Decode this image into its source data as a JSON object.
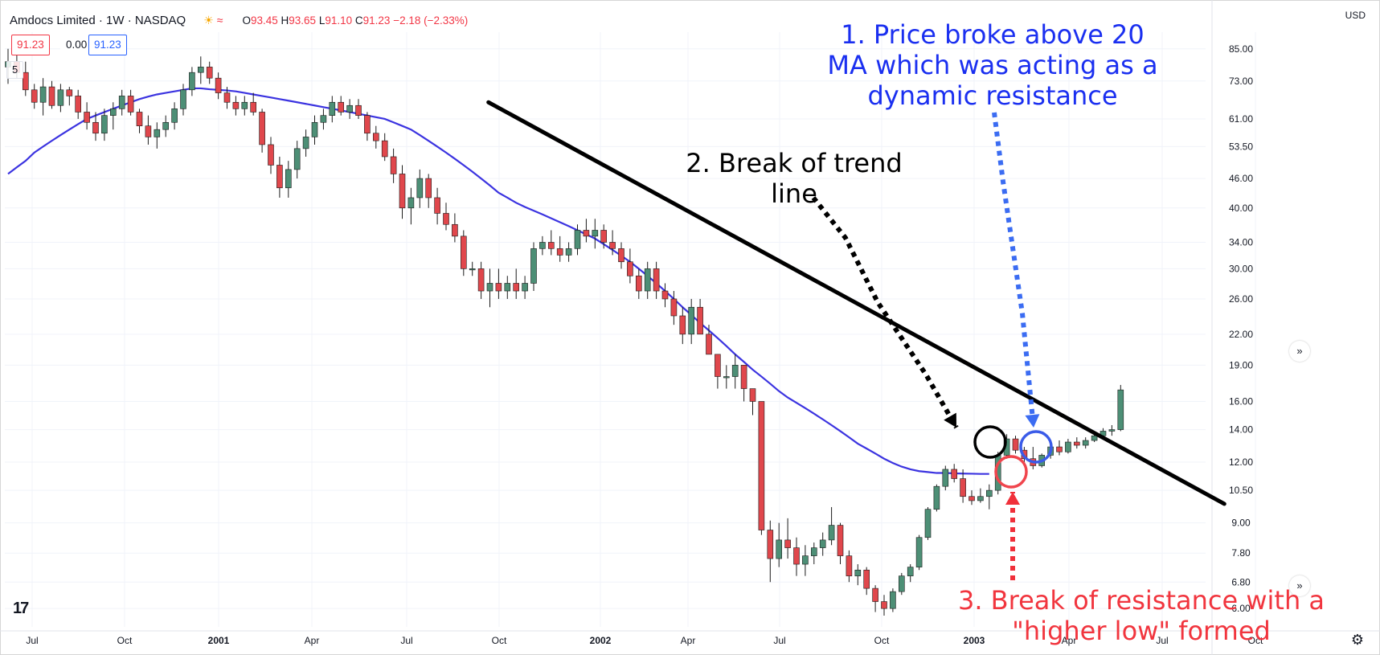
{
  "header": {
    "title": "Amdocs Limited · 1W · NASDAQ",
    "ohlc": {
      "o": "93.45",
      "h": "93.65",
      "l": "91.10",
      "c": "91.23",
      "change": "−2.18 (−2.33%)"
    }
  },
  "price_boxes": {
    "last": "91.23",
    "zero": "0.00",
    "ma": "91.23"
  },
  "legend_badge": "5",
  "currency": "USD",
  "annotations": {
    "one": [
      "1. Price broke above 20",
      "MA which was acting as a",
      "dynamic resistance"
    ],
    "two": [
      "2. Break of trend",
      "line"
    ],
    "three": [
      "3. Break of resistance with a",
      "\"higher low\" formed"
    ]
  },
  "colors": {
    "up": "#26a69a",
    "up_body": "#4d8f76",
    "down": "#e0474c",
    "ma": "#3b33e0",
    "trend": "#000000",
    "blue_annot": "#1a2ff0",
    "red_annot": "#f1353e"
  },
  "icons": {
    "gear": "gear-icon",
    "chevrons": "double-chevron-right-icon",
    "logo": "tradingview-logo-icon"
  },
  "chart_data": {
    "type": "candlestick",
    "title": "Amdocs Limited · 1W · NASDAQ",
    "y_scale": "log",
    "ylim": [
      5.5,
      92
    ],
    "y_ticks": [
      "85.00",
      "73.00",
      "61.00",
      "53.50",
      "46.00",
      "40.00",
      "34.00",
      "30.00",
      "26.00",
      "22.00",
      "19.00",
      "16.00",
      "14.00",
      "12.00",
      "10.50",
      "9.00",
      "7.80",
      "6.80",
      "6.00"
    ],
    "x_ticks": [
      "Jul",
      "Oct",
      "2001",
      "Apr",
      "Jul",
      "Oct",
      "2002",
      "Apr",
      "Jul",
      "Oct",
      "2003",
      "Apr",
      "Jul",
      "Oct"
    ],
    "x_bold": [
      "2001",
      "2002",
      "2003"
    ],
    "candles": [
      {
        "o": 78,
        "h": 85,
        "l": 72,
        "c": 80
      },
      {
        "o": 80,
        "h": 84,
        "l": 74,
        "c": 76
      },
      {
        "o": 76,
        "h": 80,
        "l": 68,
        "c": 70
      },
      {
        "o": 70,
        "h": 72,
        "l": 64,
        "c": 66
      },
      {
        "o": 66,
        "h": 74,
        "l": 62,
        "c": 71
      },
      {
        "o": 71,
        "h": 73,
        "l": 64,
        "c": 65
      },
      {
        "o": 65,
        "h": 72,
        "l": 63,
        "c": 70
      },
      {
        "o": 70,
        "h": 71,
        "l": 65,
        "c": 68
      },
      {
        "o": 68,
        "h": 70,
        "l": 61,
        "c": 63
      },
      {
        "o": 63,
        "h": 66,
        "l": 58,
        "c": 60
      },
      {
        "o": 60,
        "h": 63,
        "l": 55,
        "c": 57
      },
      {
        "o": 57,
        "h": 64,
        "l": 55,
        "c": 62
      },
      {
        "o": 62,
        "h": 66,
        "l": 58,
        "c": 64
      },
      {
        "o": 64,
        "h": 70,
        "l": 62,
        "c": 68
      },
      {
        "o": 68,
        "h": 70,
        "l": 62,
        "c": 63
      },
      {
        "o": 63,
        "h": 64,
        "l": 57,
        "c": 59
      },
      {
        "o": 59,
        "h": 62,
        "l": 54,
        "c": 56
      },
      {
        "o": 56,
        "h": 60,
        "l": 53,
        "c": 58
      },
      {
        "o": 58,
        "h": 62,
        "l": 56,
        "c": 60
      },
      {
        "o": 60,
        "h": 66,
        "l": 58,
        "c": 64
      },
      {
        "o": 64,
        "h": 72,
        "l": 62,
        "c": 70
      },
      {
        "o": 70,
        "h": 78,
        "l": 68,
        "c": 76
      },
      {
        "o": 76,
        "h": 82,
        "l": 72,
        "c": 78
      },
      {
        "o": 78,
        "h": 80,
        "l": 72,
        "c": 74
      },
      {
        "o": 74,
        "h": 76,
        "l": 67,
        "c": 69
      },
      {
        "o": 69,
        "h": 71,
        "l": 64,
        "c": 66
      },
      {
        "o": 66,
        "h": 68,
        "l": 62,
        "c": 64
      },
      {
        "o": 64,
        "h": 68,
        "l": 62,
        "c": 66
      },
      {
        "o": 66,
        "h": 69,
        "l": 62,
        "c": 63
      },
      {
        "o": 63,
        "h": 64,
        "l": 52,
        "c": 54
      },
      {
        "o": 54,
        "h": 56,
        "l": 47,
        "c": 49
      },
      {
        "o": 49,
        "h": 51,
        "l": 42,
        "c": 44
      },
      {
        "o": 44,
        "h": 50,
        "l": 42,
        "c": 48
      },
      {
        "o": 48,
        "h": 55,
        "l": 46,
        "c": 53
      },
      {
        "o": 53,
        "h": 58,
        "l": 51,
        "c": 56
      },
      {
        "o": 56,
        "h": 62,
        "l": 54,
        "c": 60
      },
      {
        "o": 60,
        "h": 64,
        "l": 58,
        "c": 62
      },
      {
        "o": 62,
        "h": 68,
        "l": 60,
        "c": 66
      },
      {
        "o": 66,
        "h": 68,
        "l": 62,
        "c": 63
      },
      {
        "o": 63,
        "h": 67,
        "l": 61,
        "c": 65
      },
      {
        "o": 65,
        "h": 67,
        "l": 61,
        "c": 62
      },
      {
        "o": 62,
        "h": 63,
        "l": 55,
        "c": 57
      },
      {
        "o": 57,
        "h": 59,
        "l": 53,
        "c": 55
      },
      {
        "o": 55,
        "h": 57,
        "l": 50,
        "c": 51
      },
      {
        "o": 51,
        "h": 53,
        "l": 45,
        "c": 47
      },
      {
        "o": 47,
        "h": 49,
        "l": 38,
        "c": 40
      },
      {
        "o": 40,
        "h": 44,
        "l": 37,
        "c": 42
      },
      {
        "o": 42,
        "h": 48,
        "l": 40,
        "c": 46
      },
      {
        "o": 46,
        "h": 47,
        "l": 40,
        "c": 42
      },
      {
        "o": 42,
        "h": 44,
        "l": 37,
        "c": 39
      },
      {
        "o": 39,
        "h": 41,
        "l": 36,
        "c": 37
      },
      {
        "o": 37,
        "h": 39,
        "l": 34,
        "c": 35
      },
      {
        "o": 35,
        "h": 36,
        "l": 29,
        "c": 30
      },
      {
        "o": 30,
        "h": 31,
        "l": 29,
        "c": 30
      },
      {
        "o": 30,
        "h": 31,
        "l": 26,
        "c": 27
      },
      {
        "o": 27,
        "h": 30,
        "l": 25,
        "c": 28
      },
      {
        "o": 28,
        "h": 30,
        "l": 26,
        "c": 27
      },
      {
        "o": 27,
        "h": 29,
        "l": 26,
        "c": 28
      },
      {
        "o": 28,
        "h": 30,
        "l": 26,
        "c": 27
      },
      {
        "o": 27,
        "h": 29,
        "l": 26,
        "c": 28
      },
      {
        "o": 28,
        "h": 34,
        "l": 27,
        "c": 33
      },
      {
        "o": 33,
        "h": 35,
        "l": 32,
        "c": 34
      },
      {
        "o": 34,
        "h": 36,
        "l": 32,
        "c": 33
      },
      {
        "o": 33,
        "h": 35,
        "l": 31,
        "c": 32
      },
      {
        "o": 32,
        "h": 34,
        "l": 31,
        "c": 33
      },
      {
        "o": 33,
        "h": 37,
        "l": 32,
        "c": 36
      },
      {
        "o": 36,
        "h": 38,
        "l": 34,
        "c": 35
      },
      {
        "o": 35,
        "h": 38,
        "l": 33,
        "c": 36
      },
      {
        "o": 36,
        "h": 37,
        "l": 33,
        "c": 34
      },
      {
        "o": 34,
        "h": 36,
        "l": 32,
        "c": 33
      },
      {
        "o": 33,
        "h": 34,
        "l": 30,
        "c": 31
      },
      {
        "o": 31,
        "h": 33,
        "l": 28,
        "c": 29
      },
      {
        "o": 29,
        "h": 30,
        "l": 26,
        "c": 27
      },
      {
        "o": 27,
        "h": 31,
        "l": 26,
        "c": 30
      },
      {
        "o": 30,
        "h": 31,
        "l": 26,
        "c": 27
      },
      {
        "o": 27,
        "h": 28,
        "l": 25,
        "c": 26
      },
      {
        "o": 26,
        "h": 27,
        "l": 23,
        "c": 24
      },
      {
        "o": 24,
        "h": 25,
        "l": 21,
        "c": 22
      },
      {
        "o": 22,
        "h": 26,
        "l": 21,
        "c": 25
      },
      {
        "o": 25,
        "h": 26,
        "l": 22,
        "c": 22
      },
      {
        "o": 22,
        "h": 23,
        "l": 20,
        "c": 20
      },
      {
        "o": 20,
        "h": 20,
        "l": 17,
        "c": 18
      },
      {
        "o": 18,
        "h": 19,
        "l": 17,
        "c": 18
      },
      {
        "o": 18,
        "h": 20,
        "l": 17,
        "c": 19
      },
      {
        "o": 19,
        "h": 19,
        "l": 16,
        "c": 17
      },
      {
        "o": 17,
        "h": 17,
        "l": 15,
        "c": 16
      },
      {
        "o": 16,
        "h": 16,
        "l": 8.5,
        "c": 8.7
      },
      {
        "o": 8.7,
        "h": 9.1,
        "l": 6.8,
        "c": 7.6
      },
      {
        "o": 7.6,
        "h": 9.0,
        "l": 7.3,
        "c": 8.3
      },
      {
        "o": 8.3,
        "h": 9.2,
        "l": 7.6,
        "c": 8.0
      },
      {
        "o": 8.0,
        "h": 8.4,
        "l": 7.0,
        "c": 7.4
      },
      {
        "o": 7.4,
        "h": 8.1,
        "l": 7.0,
        "c": 7.7
      },
      {
        "o": 7.7,
        "h": 8.2,
        "l": 7.4,
        "c": 8.0
      },
      {
        "o": 8.0,
        "h": 8.6,
        "l": 7.7,
        "c": 8.3
      },
      {
        "o": 8.3,
        "h": 9.7,
        "l": 8.1,
        "c": 8.9
      },
      {
        "o": 8.9,
        "h": 9.0,
        "l": 7.4,
        "c": 7.7
      },
      {
        "o": 7.7,
        "h": 7.9,
        "l": 6.8,
        "c": 7.0
      },
      {
        "o": 7.0,
        "h": 7.4,
        "l": 6.7,
        "c": 7.2
      },
      {
        "o": 7.2,
        "h": 7.3,
        "l": 6.4,
        "c": 6.6
      },
      {
        "o": 6.6,
        "h": 6.7,
        "l": 5.9,
        "c": 6.2
      },
      {
        "o": 6.2,
        "h": 6.4,
        "l": 5.8,
        "c": 6.0
      },
      {
        "o": 6.0,
        "h": 6.6,
        "l": 5.9,
        "c": 6.5
      },
      {
        "o": 6.5,
        "h": 7.1,
        "l": 6.4,
        "c": 7.0
      },
      {
        "o": 7.0,
        "h": 7.4,
        "l": 6.8,
        "c": 7.3
      },
      {
        "o": 7.3,
        "h": 8.5,
        "l": 7.2,
        "c": 8.4
      },
      {
        "o": 8.4,
        "h": 9.7,
        "l": 8.3,
        "c": 9.6
      },
      {
        "o": 9.6,
        "h": 10.8,
        "l": 9.5,
        "c": 10.7
      },
      {
        "o": 10.7,
        "h": 11.8,
        "l": 10.5,
        "c": 11.6
      },
      {
        "o": 11.6,
        "h": 11.9,
        "l": 10.9,
        "c": 11.1
      },
      {
        "o": 11.1,
        "h": 11.6,
        "l": 9.9,
        "c": 10.2
      },
      {
        "o": 10.2,
        "h": 10.5,
        "l": 9.8,
        "c": 10.0
      },
      {
        "o": 10.0,
        "h": 10.6,
        "l": 9.9,
        "c": 10.2
      },
      {
        "o": 10.2,
        "h": 10.8,
        "l": 9.6,
        "c": 10.5
      },
      {
        "o": 10.5,
        "h": 12.6,
        "l": 10.3,
        "c": 12.4
      },
      {
        "o": 12.4,
        "h": 13.7,
        "l": 12.2,
        "c": 13.4
      },
      {
        "o": 13.4,
        "h": 13.6,
        "l": 12.5,
        "c": 12.7
      },
      {
        "o": 12.7,
        "h": 12.9,
        "l": 12.0,
        "c": 12.2
      },
      {
        "o": 12.2,
        "h": 12.9,
        "l": 11.6,
        "c": 11.8
      },
      {
        "o": 11.8,
        "h": 12.5,
        "l": 11.7,
        "c": 12.4
      },
      {
        "o": 12.4,
        "h": 13.0,
        "l": 12.2,
        "c": 12.9
      },
      {
        "o": 12.9,
        "h": 13.3,
        "l": 12.4,
        "c": 12.6
      },
      {
        "o": 12.6,
        "h": 13.4,
        "l": 12.5,
        "c": 13.2
      },
      {
        "o": 13.2,
        "h": 13.5,
        "l": 12.8,
        "c": 13.0
      },
      {
        "o": 13.0,
        "h": 13.5,
        "l": 12.8,
        "c": 13.3
      },
      {
        "o": 13.3,
        "h": 13.8,
        "l": 13.2,
        "c": 13.6
      },
      {
        "o": 13.6,
        "h": 14.1,
        "l": 13.4,
        "c": 13.9
      },
      {
        "o": 13.9,
        "h": 14.3,
        "l": 13.6,
        "c": 14.0
      },
      {
        "o": 14.0,
        "h": 17.3,
        "l": 13.9,
        "c": 16.9
      }
    ],
    "ma_line": {
      "type": "line",
      "values": [
        47,
        48.5,
        50,
        52,
        53.5,
        55,
        56.5,
        58,
        59.5,
        61,
        62,
        63,
        64,
        65,
        66,
        67,
        67.8,
        68.5,
        69,
        69.5,
        70,
        70.5,
        70.5,
        70.2,
        70,
        69.8,
        69.5,
        69,
        68.5,
        68,
        67.5,
        67,
        66.5,
        66,
        65.5,
        65,
        64.5,
        64,
        63.5,
        63,
        62.5,
        62,
        61.5,
        61,
        60,
        59,
        58,
        56.5,
        55,
        53.5,
        52,
        50.5,
        49,
        47.5,
        46,
        44.5,
        43,
        42,
        41,
        40.2,
        39.5,
        38.8,
        38.1,
        37.4,
        36.7,
        36,
        35.3,
        34.6,
        33.7,
        32.8,
        31.9,
        31,
        30,
        29,
        28,
        27,
        26,
        25,
        24.1,
        23.2,
        22.4,
        21.6,
        20.8,
        20,
        19.3,
        18.6,
        18,
        17.4,
        16.8,
        16.3,
        15.9,
        15.5,
        15.1,
        14.7,
        14.3,
        13.9,
        13.5,
        13.1,
        12.8,
        12.5,
        12.2,
        11.95,
        11.75,
        11.6,
        11.5,
        11.45,
        11.4,
        11.4,
        11.38,
        11.37,
        11.36,
        11.35,
        11.35
      ]
    },
    "trendline": {
      "start_price": 66,
      "end_price": 9.85,
      "start_candle": 53,
      "end_candle": 137
    }
  }
}
